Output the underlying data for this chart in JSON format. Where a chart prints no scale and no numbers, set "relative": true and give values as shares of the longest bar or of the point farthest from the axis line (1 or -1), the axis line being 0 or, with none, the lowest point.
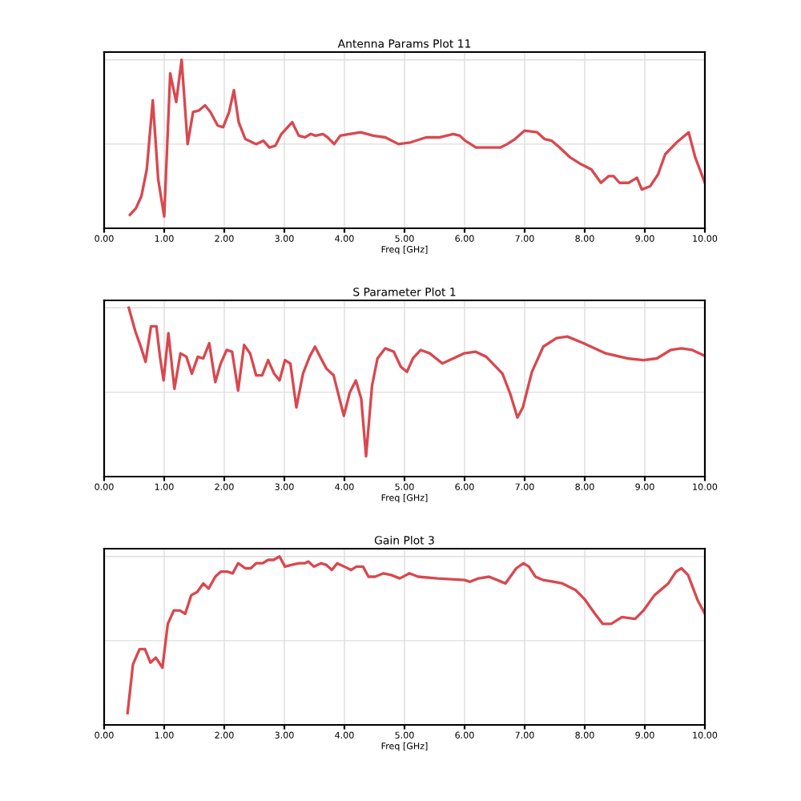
{
  "chart_data": [
    {
      "type": "line",
      "title": "Antenna Params Plot 11",
      "xlabel": "Freq [GHz]",
      "relative": true,
      "grid": true,
      "legend": false,
      "xlim": [
        0,
        10
      ],
      "xticks": [
        {
          "value": 0,
          "label": "0.00"
        },
        {
          "value": 1,
          "label": "1.00"
        },
        {
          "value": 2,
          "label": "2.00"
        },
        {
          "value": 3,
          "label": "3.00"
        },
        {
          "value": 4,
          "label": "4.00"
        },
        {
          "value": 5,
          "label": "5.00"
        },
        {
          "value": 6,
          "label": "6.00"
        },
        {
          "value": 7,
          "label": "7.00"
        },
        {
          "value": 8,
          "label": "8.00"
        },
        {
          "value": 9,
          "label": "9.00"
        },
        {
          "value": 10,
          "label": "10.00"
        }
      ],
      "series": [
        {
          "color": "#d9484f",
          "x": [
            0.43,
            0.53,
            0.62,
            0.71,
            0.81,
            0.9,
            1.0,
            1.1,
            1.2,
            1.29,
            1.39,
            1.48,
            1.58,
            1.68,
            1.77,
            1.89,
            1.98,
            2.08,
            2.16,
            2.24,
            2.35,
            2.53,
            2.65,
            2.75,
            2.85,
            2.95,
            3.13,
            3.24,
            3.34,
            3.44,
            3.52,
            3.64,
            3.72,
            3.83,
            3.93,
            4.08,
            4.27,
            4.48,
            4.68,
            4.9,
            5.1,
            5.36,
            5.59,
            5.81,
            5.92,
            6.01,
            6.19,
            6.41,
            6.6,
            6.71,
            6.84,
            7.0,
            7.21,
            7.33,
            7.45,
            7.58,
            7.76,
            7.94,
            8.11,
            8.27,
            8.4,
            8.48,
            8.58,
            8.73,
            8.87,
            8.95,
            9.09,
            9.22,
            9.34,
            9.53,
            9.73,
            9.84,
            10.0
          ],
          "values": [
            0.08,
            0.12,
            0.19,
            0.35,
            0.76,
            0.29,
            0.07,
            0.92,
            0.75,
            1.0,
            0.5,
            0.69,
            0.7,
            0.73,
            0.69,
            0.61,
            0.6,
            0.69,
            0.82,
            0.63,
            0.53,
            0.5,
            0.52,
            0.48,
            0.49,
            0.56,
            0.63,
            0.55,
            0.54,
            0.56,
            0.55,
            0.56,
            0.54,
            0.5,
            0.55,
            0.56,
            0.57,
            0.55,
            0.54,
            0.5,
            0.51,
            0.54,
            0.54,
            0.56,
            0.55,
            0.52,
            0.48,
            0.48,
            0.48,
            0.5,
            0.53,
            0.58,
            0.57,
            0.53,
            0.52,
            0.48,
            0.42,
            0.38,
            0.35,
            0.27,
            0.31,
            0.31,
            0.27,
            0.27,
            0.3,
            0.23,
            0.25,
            0.32,
            0.44,
            0.51,
            0.57,
            0.42,
            0.27
          ]
        }
      ]
    },
    {
      "type": "line",
      "title": "S Parameter Plot 1",
      "xlabel": "Freq [GHz]",
      "relative": true,
      "grid": true,
      "legend": false,
      "xlim": [
        0,
        10
      ],
      "xticks": [
        {
          "value": 0,
          "label": "0.00"
        },
        {
          "value": 1,
          "label": "1.00"
        },
        {
          "value": 2,
          "label": "2.00"
        },
        {
          "value": 3,
          "label": "3.00"
        },
        {
          "value": 4,
          "label": "4.00"
        },
        {
          "value": 5,
          "label": "5.00"
        },
        {
          "value": 6,
          "label": "6.00"
        },
        {
          "value": 7,
          "label": "7.00"
        },
        {
          "value": 8,
          "label": "8.00"
        },
        {
          "value": 9,
          "label": "9.00"
        },
        {
          "value": 10,
          "label": "10.00"
        }
      ],
      "series": [
        {
          "color": "#d9484f",
          "x": [
            0.41,
            0.52,
            0.6,
            0.69,
            0.78,
            0.87,
            0.93,
            0.99,
            1.07,
            1.17,
            1.27,
            1.37,
            1.46,
            1.56,
            1.65,
            1.75,
            1.85,
            1.94,
            2.04,
            2.13,
            2.23,
            2.33,
            2.43,
            2.53,
            2.63,
            2.73,
            2.83,
            2.92,
            3.01,
            3.1,
            3.2,
            3.31,
            3.42,
            3.51,
            3.61,
            3.7,
            3.82,
            3.99,
            4.09,
            4.19,
            4.28,
            4.36,
            4.46,
            4.55,
            4.68,
            4.82,
            4.94,
            5.04,
            5.14,
            5.27,
            5.42,
            5.63,
            5.81,
            5.99,
            6.18,
            6.36,
            6.63,
            6.76,
            6.88,
            6.97,
            7.12,
            7.31,
            7.53,
            7.71,
            7.98,
            8.35,
            8.71,
            8.98,
            9.2,
            9.43,
            9.61,
            9.79,
            9.97
          ],
          "values": [
            1.0,
            0.86,
            0.78,
            0.68,
            0.89,
            0.89,
            0.71,
            0.57,
            0.85,
            0.52,
            0.73,
            0.71,
            0.61,
            0.71,
            0.7,
            0.79,
            0.56,
            0.67,
            0.75,
            0.74,
            0.51,
            0.78,
            0.73,
            0.6,
            0.6,
            0.69,
            0.61,
            0.57,
            0.69,
            0.67,
            0.41,
            0.61,
            0.71,
            0.77,
            0.7,
            0.64,
            0.6,
            0.36,
            0.5,
            0.57,
            0.46,
            0.12,
            0.54,
            0.7,
            0.76,
            0.74,
            0.65,
            0.62,
            0.7,
            0.75,
            0.73,
            0.67,
            0.7,
            0.73,
            0.74,
            0.71,
            0.61,
            0.49,
            0.35,
            0.41,
            0.62,
            0.77,
            0.82,
            0.83,
            0.79,
            0.73,
            0.7,
            0.69,
            0.7,
            0.75,
            0.76,
            0.75,
            0.72
          ]
        }
      ]
    },
    {
      "type": "line",
      "title": "Gain Plot 3",
      "xlabel": "Freq [GHz]",
      "relative": true,
      "grid": true,
      "legend": false,
      "xlim": [
        0,
        10
      ],
      "xticks": [
        {
          "value": 0,
          "label": "0.00"
        },
        {
          "value": 1,
          "label": "1.00"
        },
        {
          "value": 2,
          "label": "2.00"
        },
        {
          "value": 3,
          "label": "3.00"
        },
        {
          "value": 4,
          "label": "4.00"
        },
        {
          "value": 5,
          "label": "5.00"
        },
        {
          "value": 6,
          "label": "6.00"
        },
        {
          "value": 7,
          "label": "7.00"
        },
        {
          "value": 8,
          "label": "8.00"
        },
        {
          "value": 9,
          "label": "9.00"
        },
        {
          "value": 10,
          "label": "10.00"
        }
      ],
      "series": [
        {
          "color": "#d9484f",
          "x": [
            0.39,
            0.48,
            0.59,
            0.68,
            0.77,
            0.86,
            0.97,
            1.06,
            1.16,
            1.26,
            1.35,
            1.45,
            1.55,
            1.65,
            1.74,
            1.85,
            1.94,
            2.05,
            2.14,
            2.23,
            2.35,
            2.44,
            2.53,
            2.64,
            2.73,
            2.82,
            2.92,
            3.01,
            3.11,
            3.25,
            3.34,
            3.4,
            3.49,
            3.61,
            3.7,
            3.79,
            3.88,
            4.0,
            4.11,
            4.2,
            4.31,
            4.4,
            4.51,
            4.65,
            4.78,
            4.92,
            5.08,
            5.23,
            5.55,
            6.0,
            6.09,
            6.23,
            6.41,
            6.68,
            6.86,
            6.98,
            7.07,
            7.18,
            7.31,
            7.49,
            7.63,
            7.85,
            7.99,
            8.17,
            8.3,
            8.44,
            8.62,
            8.84,
            8.98,
            9.16,
            9.39,
            9.52,
            9.61,
            9.72,
            9.88,
            10.0
          ],
          "values": [
            0.07,
            0.36,
            0.45,
            0.45,
            0.37,
            0.4,
            0.34,
            0.6,
            0.68,
            0.68,
            0.66,
            0.77,
            0.79,
            0.84,
            0.81,
            0.88,
            0.91,
            0.91,
            0.9,
            0.96,
            0.93,
            0.93,
            0.96,
            0.96,
            0.98,
            0.98,
            1.0,
            0.94,
            0.95,
            0.96,
            0.96,
            0.97,
            0.94,
            0.96,
            0.95,
            0.92,
            0.96,
            0.94,
            0.92,
            0.94,
            0.94,
            0.88,
            0.88,
            0.9,
            0.89,
            0.87,
            0.9,
            0.88,
            0.87,
            0.86,
            0.85,
            0.87,
            0.88,
            0.84,
            0.93,
            0.96,
            0.94,
            0.88,
            0.86,
            0.85,
            0.84,
            0.8,
            0.75,
            0.66,
            0.6,
            0.6,
            0.64,
            0.63,
            0.68,
            0.77,
            0.84,
            0.91,
            0.93,
            0.89,
            0.74,
            0.66
          ]
        }
      ]
    }
  ]
}
